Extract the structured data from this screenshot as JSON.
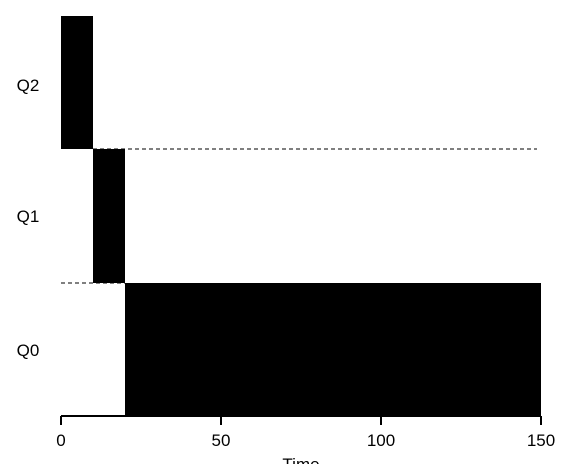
{
  "chart_data": {
    "type": "bar",
    "orientation": "timeline",
    "queues": [
      "Q2",
      "Q1",
      "Q0"
    ],
    "xlabel": "Time",
    "xlim": [
      0,
      150
    ],
    "xticks": [
      "0",
      "50",
      "100",
      "150"
    ],
    "xtick_values": [
      0,
      50,
      100,
      150
    ],
    "segments": [
      {
        "queue": "Q2",
        "start": 0,
        "end": 10
      },
      {
        "queue": "Q1",
        "start": 10,
        "end": 20
      },
      {
        "queue": "Q0",
        "start": 20,
        "end": 150
      }
    ],
    "separator_style": "dashed",
    "bar_color": "#000000"
  }
}
